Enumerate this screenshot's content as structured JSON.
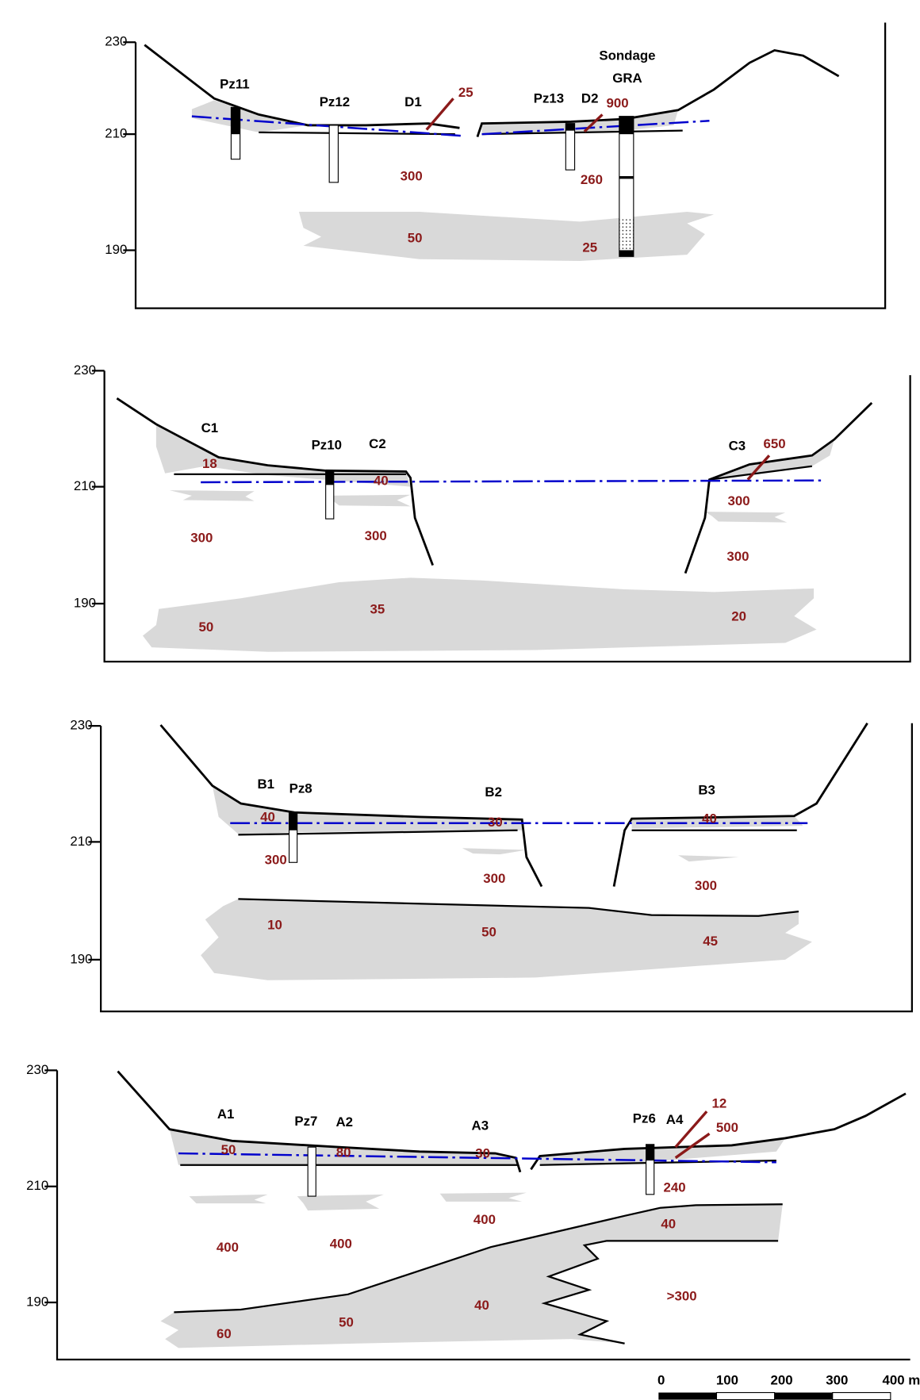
{
  "panels": [
    {
      "yticks": [
        "230",
        "210",
        "190"
      ],
      "labels": [
        "Pz11",
        "Pz12",
        "D1",
        "25",
        "Sondage",
        "GRA",
        "Pz13",
        "D2",
        "900",
        "300",
        "260",
        "50",
        "25"
      ]
    },
    {
      "yticks": [
        "230",
        "210",
        "190"
      ],
      "labels": [
        "C1",
        "18",
        "Pz10",
        "C2",
        "C3",
        "650",
        "40",
        "300",
        "300",
        "300",
        "300",
        "50",
        "35",
        "20"
      ]
    },
    {
      "yticks": [
        "230",
        "210",
        "190"
      ],
      "labels": [
        "B1",
        "Pz8",
        "B2",
        "B3",
        "40",
        "30",
        "40",
        "300",
        "300",
        "300",
        "10",
        "50",
        "45"
      ]
    },
    {
      "yticks": [
        "230",
        "210",
        "190"
      ],
      "labels": [
        "A1",
        "Pz7",
        "A2",
        "A3",
        "Pz6",
        "A4",
        "12",
        "500",
        "50",
        "80",
        "30",
        "240",
        "400",
        "40",
        "400",
        "400",
        ">300",
        "40",
        "60",
        "50"
      ]
    }
  ],
  "scale": {
    "ticks": [
      "0",
      "100",
      "200",
      "300",
      "400 m"
    ]
  }
}
